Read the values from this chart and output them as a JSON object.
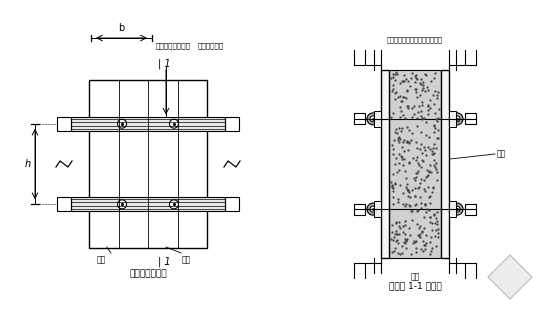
{
  "bg_color": "#ffffff",
  "line_color": "#000000",
  "left_diagram_title": "墙模板正立面图",
  "right_diagram_title": "墙模板 1-1 剪面图",
  "label_b": "b",
  "label_h": "h",
  "label_mianban": "面板",
  "label_loushu": "螺栏",
  "label_loushu2": "螺栅",
  "label_zhupu_left": "主樹（图形钓管）",
  "label_cipu_left": "次樹（方木）",
  "label_zhupu_right": "主樹（图形钓管）次樹（方木）",
  "label_mianban_right": "面板",
  "label_11_top": "| 1",
  "label_11_bot": "| 1"
}
